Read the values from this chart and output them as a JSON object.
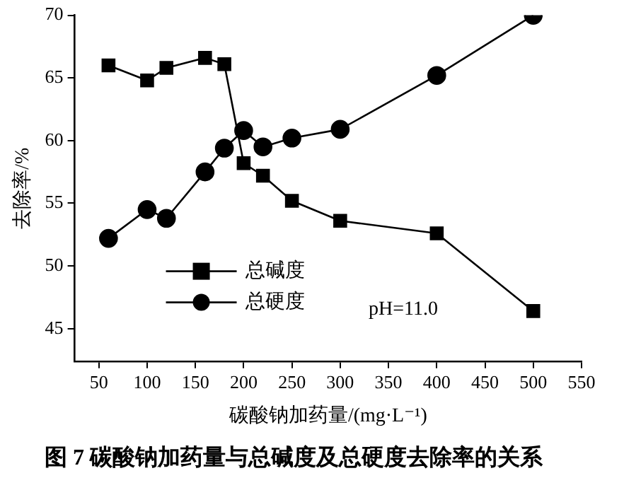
{
  "chart_data": {
    "type": "line",
    "title": "图 7 碳酸钠加药量与总碱度及总硬度去除率的关系",
    "xlabel": "碳酸钠加药量/(mg·L⁻¹)",
    "ylabel": "去除率/%",
    "x": [
      60,
      100,
      120,
      160,
      180,
      200,
      220,
      250,
      300,
      400,
      500
    ],
    "series": [
      {
        "name": "总碱度",
        "color": "#000000",
        "marker": "square",
        "values": [
          66.0,
          64.8,
          65.8,
          66.6,
          66.1,
          58.2,
          57.2,
          55.2,
          53.6,
          52.6,
          46.4
        ]
      },
      {
        "name": "总硬度",
        "color": "#000000",
        "marker": "circle",
        "values": [
          52.2,
          54.5,
          53.8,
          57.5,
          59.4,
          60.8,
          59.5,
          60.2,
          60.9,
          65.2,
          70.0
        ]
      }
    ],
    "xlim": [
      25,
      550
    ],
    "xticks": [
      50,
      100,
      150,
      200,
      250,
      300,
      350,
      400,
      450,
      500,
      550
    ],
    "ylim": [
      42.4,
      70
    ],
    "yticks": [
      45,
      50,
      55,
      60,
      65,
      70
    ],
    "grid": false,
    "legend": "center left",
    "line_style": "solid",
    "annotations": [
      {
        "text": "pH=11.0"
      }
    ]
  }
}
